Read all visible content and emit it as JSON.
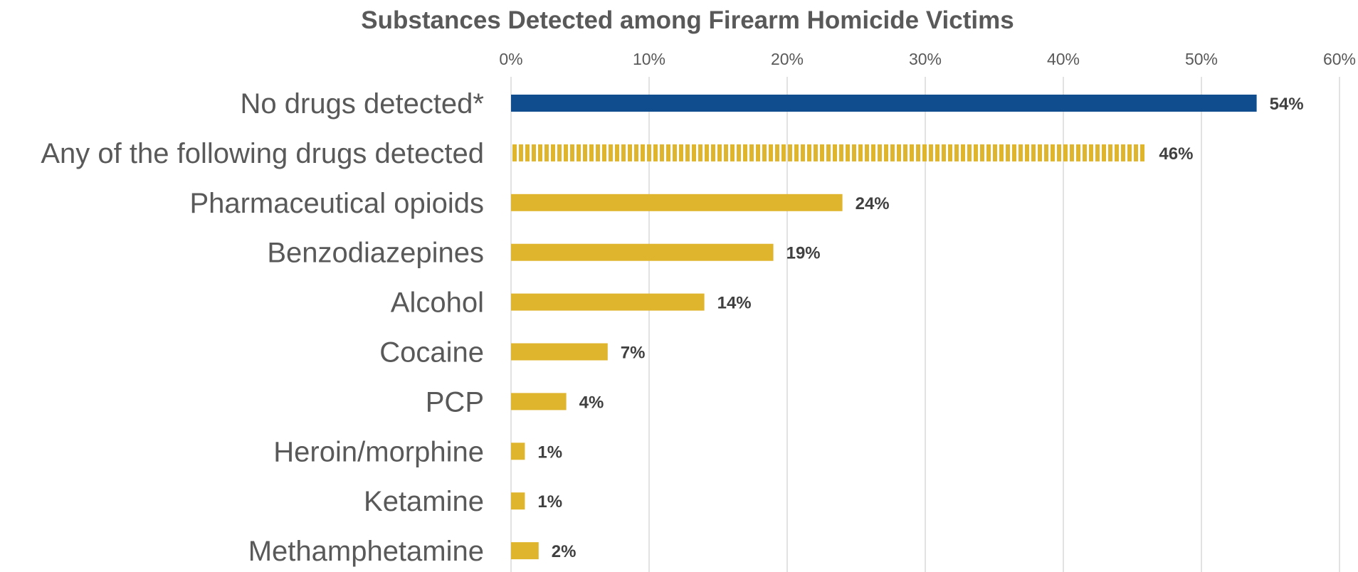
{
  "chart_data": {
    "type": "bar",
    "orientation": "horizontal",
    "title": "Substances Detected among Firearm Homicide Victims",
    "xlabel": "",
    "ylabel": "",
    "xlim": [
      0,
      60
    ],
    "tick_labels": [
      "0%",
      "10%",
      "20%",
      "30%",
      "40%",
      "50%",
      "60%"
    ],
    "axis_position": "top",
    "grid": true,
    "categories": [
      "No drugs detected*",
      "Any of the following drugs detected",
      "Pharmaceutical opioids",
      "Benzodiazepines",
      "Alcohol",
      "Cocaine",
      "PCP",
      "Heroin/morphine",
      "Ketamine",
      "Methamphetamine"
    ],
    "values": [
      54,
      46,
      24,
      19,
      14,
      7,
      4,
      1,
      1,
      2
    ],
    "value_labels": [
      "54%",
      "46%",
      "24%",
      "19%",
      "14%",
      "7%",
      "4%",
      "1%",
      "1%",
      "2%"
    ],
    "bar_styles": [
      "solid-blue",
      "striped-gold",
      "solid-gold",
      "solid-gold",
      "solid-gold",
      "solid-gold",
      "solid-gold",
      "solid-gold",
      "solid-gold",
      "solid-gold"
    ],
    "colors": {
      "blue": "#0f4d8f",
      "gold": "#e0b52e",
      "stripe_gap": "#ffffff"
    }
  }
}
